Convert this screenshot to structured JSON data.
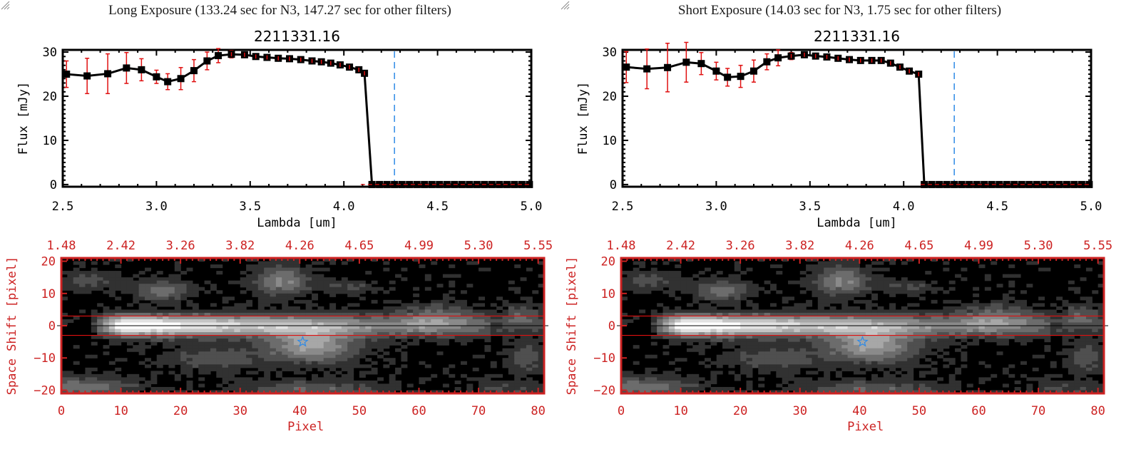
{
  "panels": [
    {
      "id": "long",
      "exposure_title": "Long Exposure (133.24 sec for N3, 147.27 sec for other filters)",
      "source_id": "2211331.16"
    },
    {
      "id": "short",
      "exposure_title": "Short Exposure (14.03 sec for N3, 1.75 sec for other filters)",
      "source_id": "2211331.16"
    }
  ],
  "colors": {
    "axis": "#000000",
    "error_bar": "#e01010",
    "marker": "#000000",
    "marker_fill_inner": "#8b0000",
    "line_marker_vertical": "#2e8ae6",
    "zero_line": "#e01010",
    "image_axis": "#cc2222",
    "extraction_box": "#e01010",
    "star_marker": "#2e8ae6"
  },
  "chart_data": [
    {
      "type": "line",
      "panel": "long",
      "title": "2211331.16",
      "xlabel": "Lambda [um]",
      "ylabel": "Flux [mJy]",
      "xlim": [
        2.5,
        5.0
      ],
      "ylim": [
        -0.5,
        30.5
      ],
      "xticks": [
        "2.5",
        "3.0",
        "3.5",
        "4.0",
        "4.5",
        "5.0"
      ],
      "xtick_values": [
        2.5,
        3.0,
        3.5,
        4.0,
        4.5,
        5.0
      ],
      "yticks": [
        "0",
        "10",
        "20",
        "30"
      ],
      "ytick_values": [
        0,
        10,
        20,
        30
      ],
      "vline_x": 4.27,
      "hline_y": 0,
      "series": [
        {
          "name": "flux",
          "x": [
            2.52,
            2.63,
            2.74,
            2.84,
            2.92,
            3.0,
            3.06,
            3.13,
            3.2,
            3.27,
            3.33,
            3.4,
            3.47,
            3.53,
            3.59,
            3.65,
            3.71,
            3.77,
            3.83,
            3.88,
            3.93,
            3.98,
            4.03,
            4.08,
            4.11,
            4.15,
            4.19,
            4.23,
            4.27,
            4.31,
            4.35,
            4.39,
            4.43,
            4.47,
            4.51,
            4.55,
            4.59,
            4.63,
            4.67,
            4.71,
            4.75,
            4.79,
            4.83,
            4.87,
            4.91,
            4.95,
            4.99
          ],
          "y": [
            25.0,
            24.6,
            25.1,
            26.4,
            26.0,
            24.4,
            23.3,
            24.0,
            25.8,
            28.0,
            29.2,
            29.5,
            29.4,
            29.0,
            28.8,
            28.6,
            28.5,
            28.3,
            28.0,
            27.8,
            27.5,
            27.1,
            26.6,
            26.0,
            25.2,
            0,
            0,
            0,
            0,
            0,
            0,
            0,
            0,
            0,
            0,
            0,
            0,
            0,
            0,
            0,
            0,
            0,
            0,
            0,
            0,
            0,
            0
          ],
          "err": [
            3.0,
            4.0,
            4.5,
            3.5,
            2.5,
            1.5,
            1.8,
            2.5,
            2.5,
            2.0,
            1.6,
            0.8,
            0.5,
            0.4,
            0.4,
            0.3,
            0.3,
            0.3,
            0.3,
            0.3,
            0.3,
            0.3,
            0.3,
            0.3,
            0.3,
            0,
            0,
            0,
            0,
            0,
            0,
            0,
            0,
            0,
            0,
            0,
            0,
            0,
            0,
            0,
            0,
            0,
            0,
            0,
            0,
            0,
            0
          ]
        }
      ]
    },
    {
      "type": "line",
      "panel": "short",
      "title": "2211331.16",
      "xlabel": "Lambda [um]",
      "ylabel": "Flux [mJy]",
      "xlim": [
        2.5,
        5.0
      ],
      "ylim": [
        -0.5,
        30.5
      ],
      "xticks": [
        "2.5",
        "3.0",
        "3.5",
        "4.0",
        "4.5",
        "5.0"
      ],
      "xtick_values": [
        2.5,
        3.0,
        3.5,
        4.0,
        4.5,
        5.0
      ],
      "yticks": [
        "0",
        "10",
        "20",
        "30"
      ],
      "ytick_values": [
        0,
        10,
        20,
        30
      ],
      "vline_x": 4.27,
      "hline_y": 0,
      "series": [
        {
          "name": "flux",
          "x": [
            2.52,
            2.63,
            2.74,
            2.84,
            2.92,
            3.0,
            3.06,
            3.13,
            3.2,
            3.27,
            3.33,
            3.4,
            3.47,
            3.53,
            3.59,
            3.65,
            3.71,
            3.77,
            3.83,
            3.88,
            3.93,
            3.98,
            4.03,
            4.08,
            4.11,
            4.15,
            4.19,
            4.23,
            4.27,
            4.31,
            4.35,
            4.39,
            4.43,
            4.47,
            4.51,
            4.55,
            4.59,
            4.63,
            4.67,
            4.71,
            4.75,
            4.79,
            4.83,
            4.87,
            4.91,
            4.95,
            4.99
          ],
          "y": [
            26.6,
            26.2,
            26.5,
            27.7,
            27.4,
            25.7,
            24.3,
            24.5,
            25.7,
            27.8,
            28.7,
            29.1,
            29.4,
            29.1,
            28.9,
            28.6,
            28.3,
            28.1,
            28.1,
            28.1,
            27.5,
            26.6,
            25.7,
            25.0,
            0,
            0,
            0,
            0,
            0,
            0,
            0,
            0,
            0,
            0,
            0,
            0,
            0,
            0,
            0,
            0,
            0,
            0,
            0,
            0,
            0,
            0,
            0
          ],
          "err": [
            3.5,
            4.5,
            5.5,
            4.5,
            2.5,
            2.0,
            2.0,
            2.5,
            2.5,
            1.8,
            1.8,
            0.8,
            0.4,
            0.4,
            0.3,
            0.3,
            0.3,
            0.3,
            0.3,
            0.3,
            0.3,
            0.4,
            0.4,
            0.5,
            0,
            0,
            0,
            0,
            0,
            0,
            0,
            0,
            0,
            0,
            0,
            0,
            0,
            0,
            0,
            0,
            0,
            0,
            0,
            0,
            0,
            0,
            0
          ]
        }
      ]
    },
    {
      "type": "heatmap",
      "panel": "long",
      "xlabel": "Pixel",
      "ylabel": "Space Shift [pixel]",
      "xlim": [
        0,
        81
      ],
      "ylim": [
        -21,
        21
      ],
      "xticks": [
        "0",
        "10",
        "20",
        "30",
        "40",
        "50",
        "60",
        "70",
        "80"
      ],
      "xtick_values": [
        0,
        10,
        20,
        30,
        40,
        50,
        60,
        70,
        80
      ],
      "yticks": [
        "-20",
        "-10",
        "0",
        "10",
        "20"
      ],
      "ytick_values": [
        -20,
        -10,
        0,
        10,
        20
      ],
      "top_axis_label_ticks": [
        "1.48",
        "2.42",
        "3.26",
        "3.82",
        "4.26",
        "4.65",
        "4.99",
        "5.30",
        "5.55"
      ],
      "extraction_box_y": [
        -3,
        3
      ],
      "center_line_y": 0,
      "star_marker": {
        "x": 40.5,
        "y": -5
      }
    },
    {
      "type": "heatmap",
      "panel": "short",
      "xlabel": "Pixel",
      "ylabel": "Space Shift [pixel]",
      "xlim": [
        0,
        81
      ],
      "ylim": [
        -21,
        21
      ],
      "xticks": [
        "0",
        "10",
        "20",
        "30",
        "40",
        "50",
        "60",
        "70",
        "80"
      ],
      "xtick_values": [
        0,
        10,
        20,
        30,
        40,
        50,
        60,
        70,
        80
      ],
      "yticks": [
        "-20",
        "-10",
        "0",
        "10",
        "20"
      ],
      "ytick_values": [
        -20,
        -10,
        0,
        10,
        20
      ],
      "top_axis_label_ticks": [
        "1.48",
        "2.42",
        "3.26",
        "3.82",
        "4.26",
        "4.65",
        "4.99",
        "5.30",
        "5.55"
      ],
      "extraction_box_y": [
        -3,
        3
      ],
      "center_line_y": 0,
      "star_marker": {
        "x": 40.5,
        "y": -5
      }
    }
  ]
}
